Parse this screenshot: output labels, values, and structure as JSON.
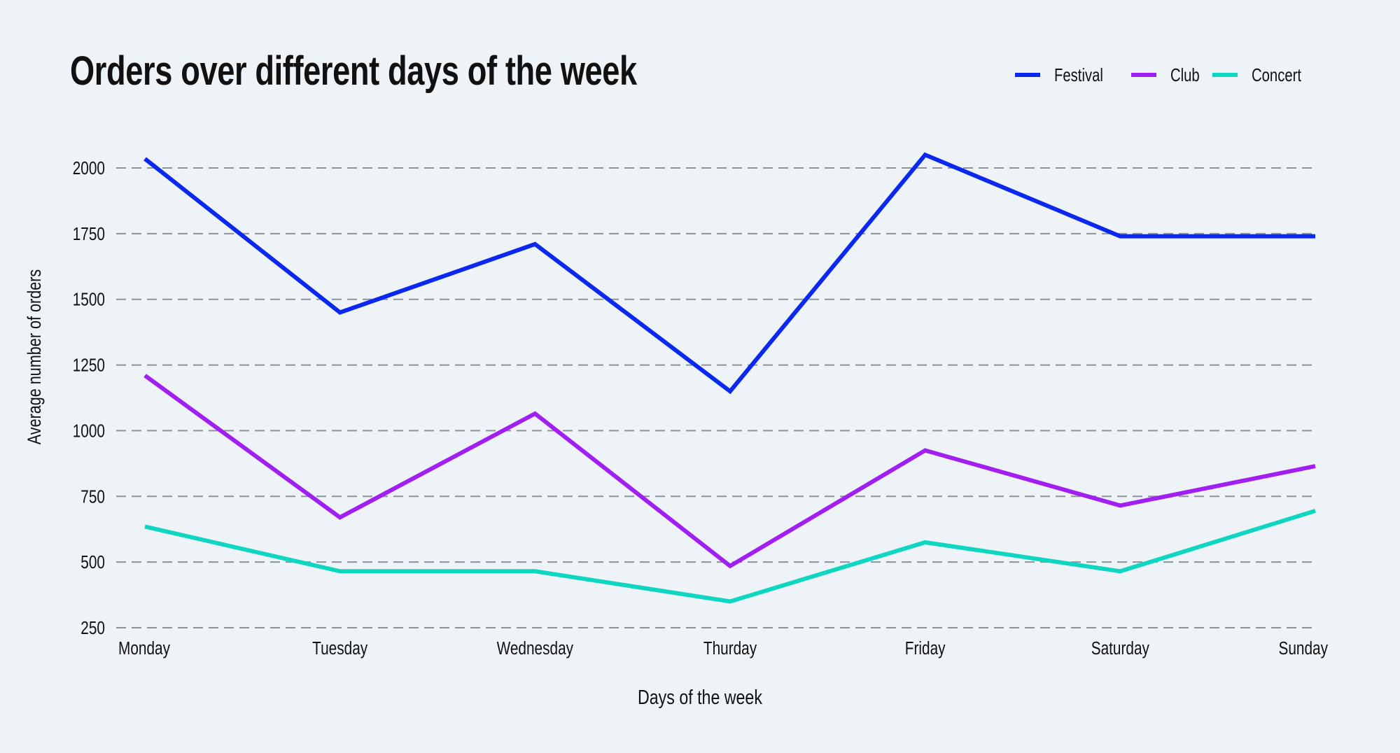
{
  "chart_data": {
    "type": "line",
    "title": "Orders over different days of the week",
    "xlabel": "Days of the week",
    "ylabel": "Average number of orders",
    "categories": [
      "Monday",
      "Tuesday",
      "Wednesday",
      "Thurday",
      "Friday",
      "Saturday",
      "Sunday"
    ],
    "yticks": [
      250,
      500,
      750,
      1000,
      1250,
      1500,
      1750,
      2000
    ],
    "ylim": [
      250,
      2000
    ],
    "grid": "horizontal dashed",
    "legend": "top-right",
    "series": [
      {
        "name": "Festival",
        "color": "#0a28f0",
        "values": [
          2035,
          1450,
          1710,
          1150,
          2050,
          1740,
          1740
        ]
      },
      {
        "name": "Club",
        "color": "#a21ff2",
        "values": [
          1210,
          670,
          1065,
          485,
          925,
          715,
          865
        ]
      },
      {
        "name": "Concert",
        "color": "#0fd6c0",
        "values": [
          635,
          465,
          465,
          350,
          575,
          465,
          695
        ]
      }
    ]
  }
}
